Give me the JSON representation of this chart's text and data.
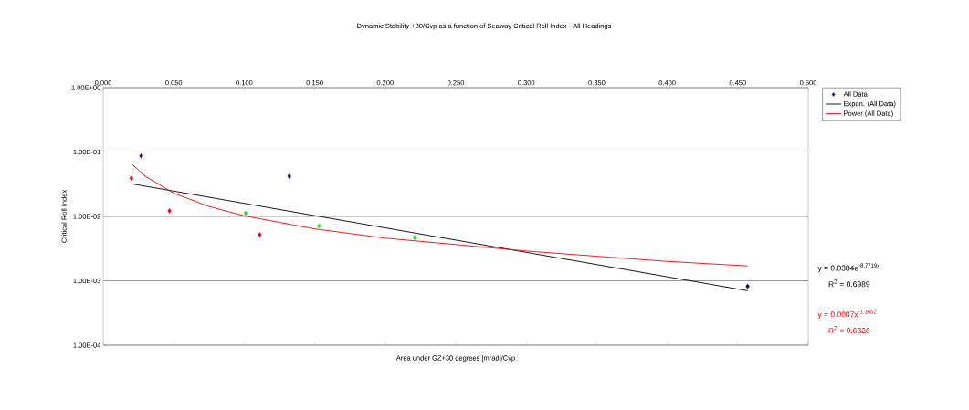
{
  "chart_data": {
    "type": "scatter",
    "title": "Dynamic Stability +30/Cvp as a function of Seaway Critical Roll Index - All Headings",
    "xlabel": "Area under GZ+30 degrees [mrad]/Cvp",
    "ylabel": "Critical Roll Index",
    "log": "y",
    "grid": "y",
    "legend": "right",
    "xlim": [
      0,
      0.5
    ],
    "xticks": [
      {
        "value": 0,
        "label": "0.000"
      },
      {
        "value": 0.05,
        "label": "0.050"
      },
      {
        "value": 0.1,
        "label": "0.100"
      },
      {
        "value": 0.15,
        "label": "0.150"
      },
      {
        "value": 0.2,
        "label": "0.200"
      },
      {
        "value": 0.25,
        "label": "0.250"
      },
      {
        "value": 0.3,
        "label": "0.300"
      },
      {
        "value": 0.35,
        "label": "0.350"
      },
      {
        "value": 0.4,
        "label": "0.400"
      },
      {
        "value": 0.45,
        "label": "0.450"
      },
      {
        "value": 0.5,
        "label": "0.500"
      }
    ],
    "ylim": [
      0.0001,
      1
    ],
    "yticks": [
      {
        "value": 0.0001,
        "label": "1.00E-04"
      },
      {
        "value": 0.001,
        "label": "1.00E-03"
      },
      {
        "value": 0.01,
        "label": "1.00E-02"
      },
      {
        "value": 0.1,
        "label": "1.00E-01"
      },
      {
        "value": 1,
        "label": "1.00E+00"
      }
    ],
    "series": [
      {
        "name": "All Data",
        "marker": "diamond",
        "color": "#000080",
        "x": [
          0.027,
          0.132,
          0.457,
          0.02,
          0.047,
          0.111,
          0.101,
          0.153,
          0.221
        ],
        "values": [
          0.087,
          0.042,
          0.00082,
          0.039,
          0.0122,
          0.0052,
          0.0112,
          0.0071,
          0.0047
        ],
        "colors": [
          "#000080",
          "#000080",
          "#000080",
          "#ff0000",
          "#ff0000",
          "#ff0000",
          "#00ee00",
          "#00ee00",
          "#00ee00"
        ]
      },
      {
        "name": "Expon. (All Data)",
        "type": "line",
        "color": "#000000",
        "x": [
          0.02,
          0.457
        ],
        "values": [
          0.0321,
          0.0007
        ]
      },
      {
        "name": "Power (All Data)",
        "type": "line",
        "color": "#ff0000",
        "x": [
          0.02,
          0.03,
          0.05,
          0.075,
          0.1,
          0.15,
          0.2,
          0.3,
          0.4,
          0.457
        ],
        "values": [
          0.0657,
          0.0417,
          0.023,
          0.0143,
          0.0102,
          0.0064,
          0.0046,
          0.0029,
          0.002,
          0.0017
        ]
      }
    ],
    "annotations": [
      "y = 0.0384e$^{-8.7719x}$",
      "R$^{2}$ = 0.6989",
      "y = 0.0007x$^{-1.1652}$",
      "R$^{2}$ = 0.6826"
    ]
  }
}
